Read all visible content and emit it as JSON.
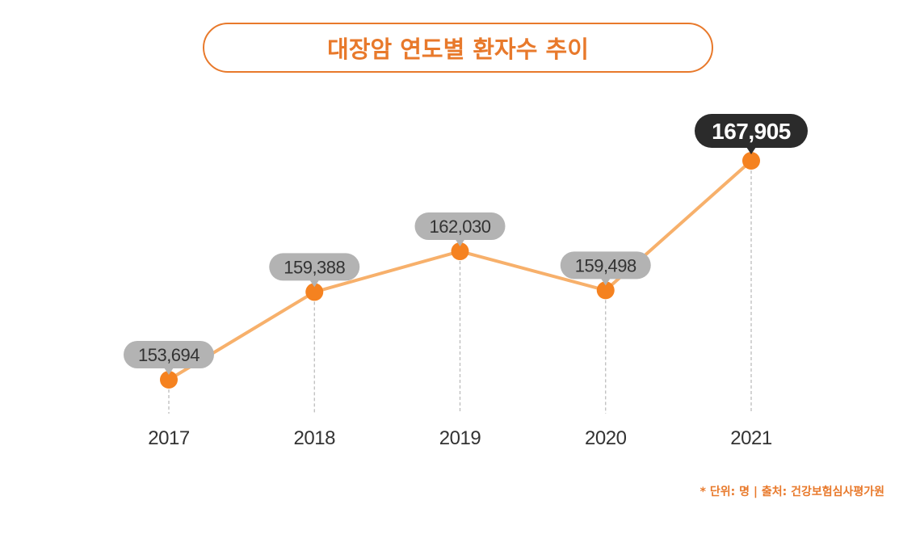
{
  "chart_data": {
    "type": "line",
    "title": "대장암 연도별 환자수 추이",
    "categories": [
      "2017",
      "2018",
      "2019",
      "2020",
      "2021"
    ],
    "values": [
      153694,
      159388,
      162030,
      159498,
      167905
    ],
    "value_labels": [
      "153,694",
      "159,388",
      "162,030",
      "159,498",
      "167,905"
    ],
    "highlight_index": 4,
    "xlabel": "",
    "ylabel": "",
    "ylim": [
      150000,
      170000
    ],
    "grid": false,
    "colors": {
      "line": "#f7b06b",
      "marker": "#f58220",
      "label_bg": "#b3b3b3",
      "highlight_bg": "#2b2b2b",
      "accent": "#e8792b",
      "axis_text": "#333333",
      "guide": "#b8b8b8"
    }
  },
  "footnote": "* 단위: 명 | 출처: 건강보험심사평가원"
}
